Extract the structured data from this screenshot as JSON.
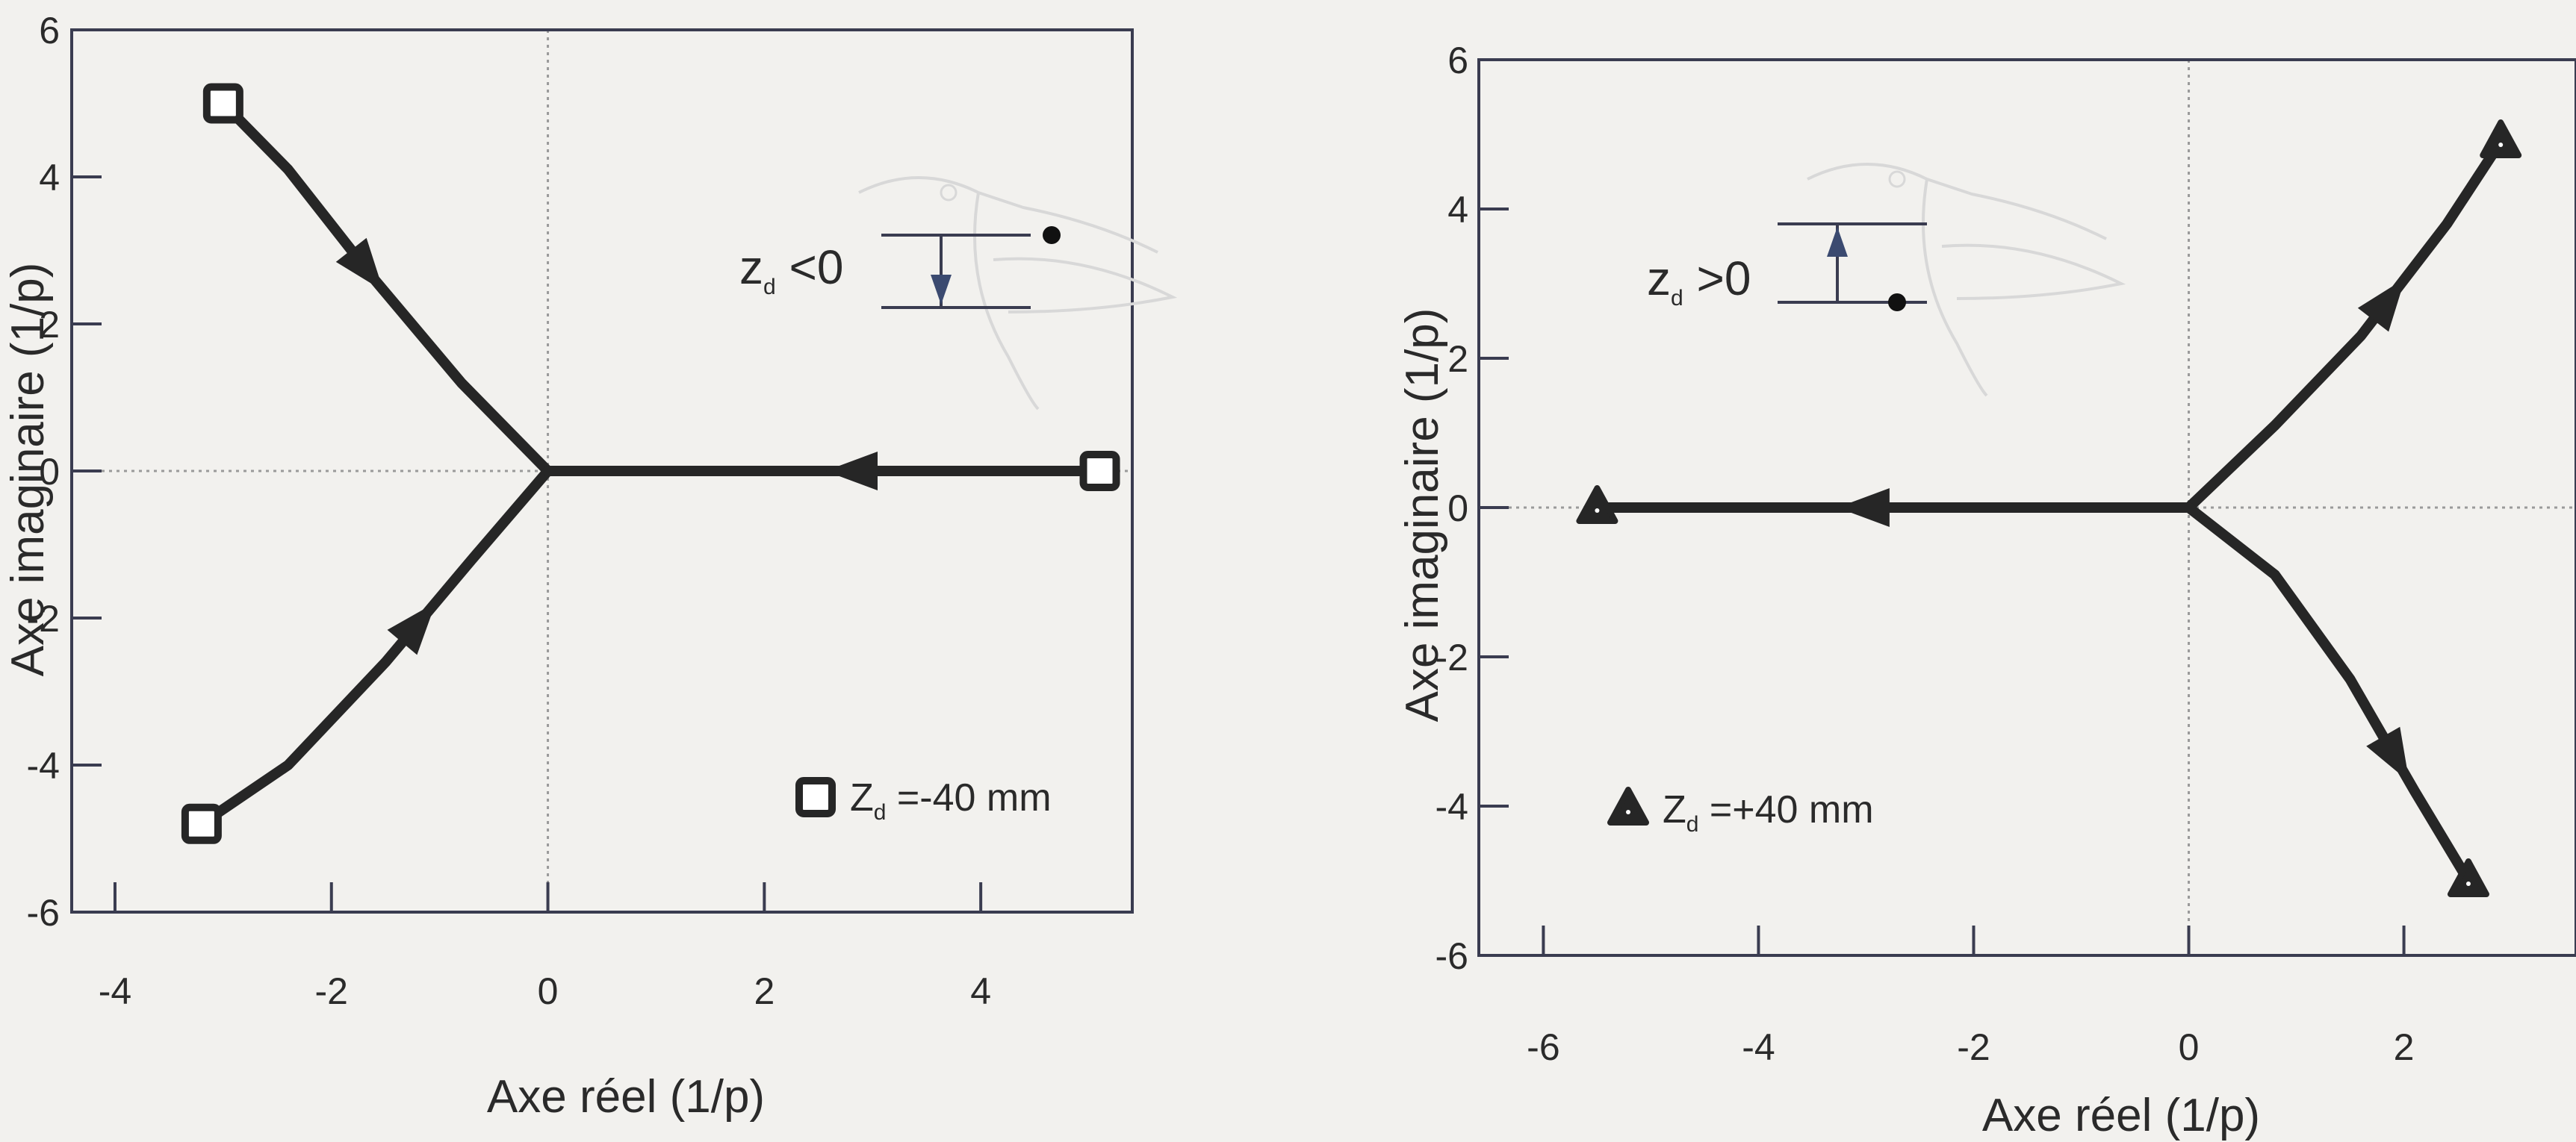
{
  "chart_data": [
    {
      "type": "scatter",
      "xlabel": "Axe réel (1/p)",
      "ylabel": "Axe imaginaire (1/p)",
      "xlim": [
        -4.4,
        5.4
      ],
      "ylim": [
        -6,
        6
      ],
      "x_ticks": [
        -4,
        -2,
        0,
        2,
        4
      ],
      "y_ticks": [
        6,
        4,
        2,
        0,
        -2,
        -4,
        -6
      ],
      "grid": "dotted lines at x=0 and y=0",
      "marker": "square",
      "series": [
        {
          "name": "Z_d =-40 mm",
          "branches": [
            {
              "x": [
                -3.0,
                -2.4,
                -1.6,
                -0.8,
                0.0
              ],
              "y": [
                5.0,
                4.1,
                2.6,
                1.2,
                0.0
              ],
              "arrow_at": 0.45
            },
            {
              "x": [
                -3.2,
                -2.4,
                -1.5,
                -0.7,
                0.0
              ],
              "y": [
                -4.8,
                -4.0,
                -2.6,
                -1.2,
                0.0
              ],
              "arrow_at": 0.6
            },
            {
              "x": [
                5.1,
                2.6,
                0.0
              ],
              "y": [
                0.0,
                0.0,
                0.0
              ],
              "arrow_at": 0.45
            }
          ],
          "start_points": [
            {
              "x": -3.0,
              "y": 5.0
            },
            {
              "x": -3.2,
              "y": -4.8
            },
            {
              "x": 5.1,
              "y": 0.0
            }
          ]
        }
      ],
      "legend": {
        "symbol": "square",
        "label_main": "Z",
        "label_sub": "d",
        "label_rest": " =-40 mm",
        "placement": "bottom-right"
      },
      "inset": {
        "label_main": "z",
        "label_sub": "d",
        "label_rest": " <0",
        "arrow": "down"
      }
    },
    {
      "type": "scatter",
      "xlabel": "Axe réel (1/p)",
      "ylabel": "Axe imaginaire (1/p)",
      "xlim": [
        -6.6,
        3.6
      ],
      "ylim": [
        -6,
        6
      ],
      "x_ticks": [
        -6,
        -4,
        -2,
        0,
        2
      ],
      "y_ticks": [
        6,
        4,
        2,
        0,
        -2,
        -4,
        -6
      ],
      "grid": "dotted lines at x=0 and y=0",
      "marker": "triangle",
      "series": [
        {
          "name": "Z_d =+40 mm",
          "branches": [
            {
              "x": [
                0.0,
                0.8,
                1.6,
                2.4,
                2.9
              ],
              "y": [
                0.0,
                1.1,
                2.3,
                3.8,
                4.9
              ],
              "arrow_at": 0.6
            },
            {
              "x": [
                0.0,
                0.8,
                1.5,
                2.1,
                2.6
              ],
              "y": [
                0.0,
                -0.9,
                -2.3,
                -3.8,
                -5.0
              ],
              "arrow_at": 0.7
            },
            {
              "x": [
                0.0,
                -2.7,
                -5.5
              ],
              "y": [
                0.0,
                0.0,
                0.0
              ],
              "arrow_at": 0.55
            }
          ],
          "start_points": [
            {
              "x": 0.0,
              "y": 0.0
            }
          ],
          "end_points": [
            {
              "x": 2.9,
              "y": 4.9
            },
            {
              "x": 2.6,
              "y": -5.0
            },
            {
              "x": -5.5,
              "y": 0.0
            }
          ]
        }
      ],
      "legend": {
        "symbol": "triangle",
        "label_main": "Z",
        "label_sub": "d",
        "label_rest": " =+40 mm",
        "placement": "bottom-left"
      },
      "inset": {
        "label_main": "z",
        "label_sub": "d",
        "label_rest": " >0",
        "arrow": "up"
      }
    }
  ],
  "colors": {
    "curve": "#262626",
    "frame": "#3a3c50",
    "grid": "#9a9a9a",
    "background": "#f2f1ee",
    "inset_bird": "#d8d8d8"
  }
}
